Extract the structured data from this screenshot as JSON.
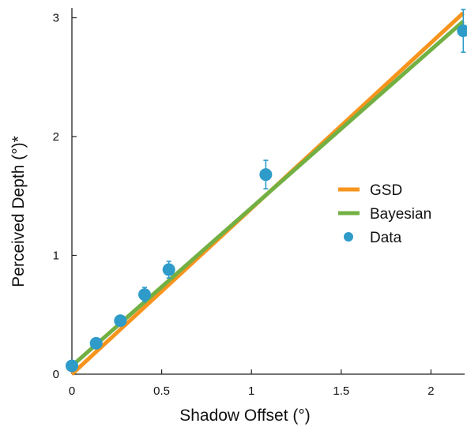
{
  "chart_data": {
    "type": "line",
    "title": "",
    "xlabel": "Shadow Offset (°)",
    "ylabel": "Perceived Depth (°)*",
    "xlim": [
      0,
      2.18
    ],
    "ylim": [
      0,
      3.1
    ],
    "xticks": [
      0,
      0.5,
      1,
      1.5,
      2
    ],
    "xtick_labels": [
      "0",
      "0.5",
      "1",
      "1.5",
      "2"
    ],
    "yticks": [
      0,
      1,
      2,
      3
    ],
    "ytick_labels": [
      "0",
      "1",
      "2",
      "3"
    ],
    "grid": false,
    "legend_position": "center-right",
    "series": [
      {
        "name": "GSD",
        "kind": "line",
        "color": "#F7941D",
        "x": [
          0,
          2.18
        ],
        "y": [
          0,
          3.04
        ]
      },
      {
        "name": "Bayesian",
        "kind": "line",
        "color": "#72B043",
        "x": [
          0,
          2.18
        ],
        "y": [
          0.07,
          2.97
        ]
      },
      {
        "name": "Data",
        "kind": "scatter",
        "color": "#2E9BC9",
        "x": [
          0,
          0.135,
          0.27,
          0.405,
          0.54,
          1.08,
          2.18
        ],
        "y": [
          0.07,
          0.26,
          0.45,
          0.67,
          0.88,
          1.68,
          2.89
        ],
        "err": [
          0.02,
          0.03,
          0.03,
          0.06,
          0.07,
          0.12,
          0.18
        ]
      }
    ]
  }
}
